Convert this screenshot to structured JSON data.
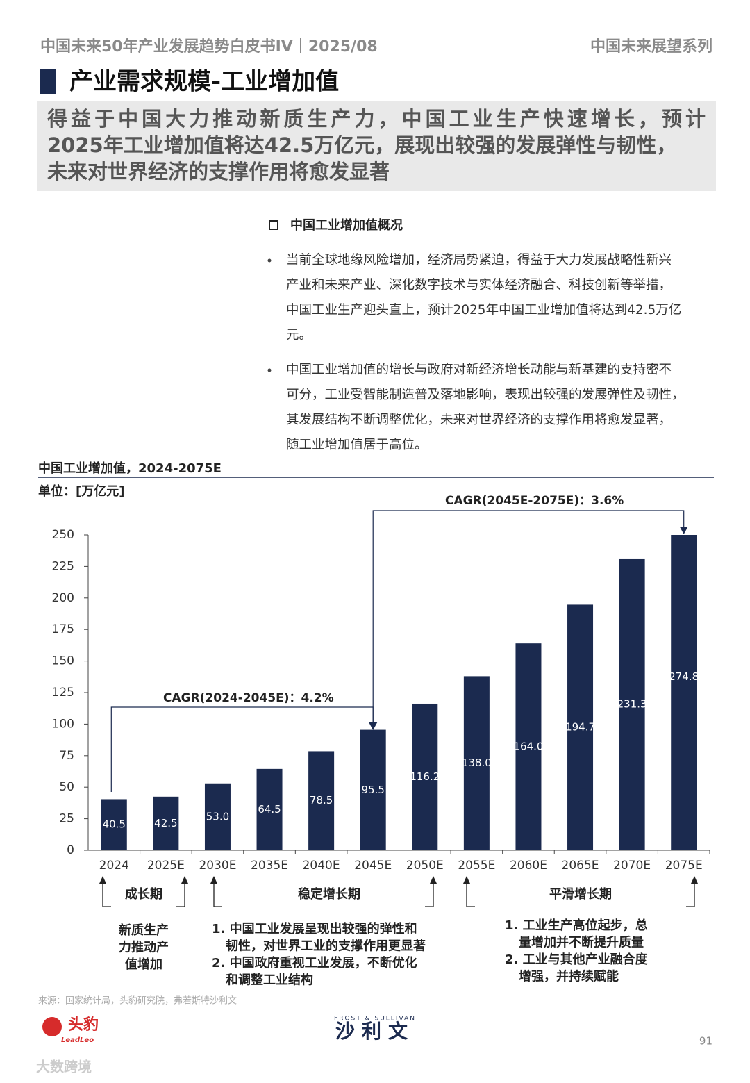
{
  "header": {
    "left": "中国未来50年产业发展趋势白皮书IV｜2025/08",
    "right": "中国未来展望系列"
  },
  "section_title": "产业需求规模-工业增加值",
  "summary": [
    "得益于中国大力推动新质生产力，中国工业生产快速增长，预计",
    "2025年工业增加值将达42.5万亿元，展现出较强的发展弹性与韧性，",
    "未来对世界经济的支撑作用将愈发显著"
  ],
  "overview": {
    "heading": "中国工业增加值概况",
    "bullets": [
      [
        "当前全球地缘风险增加，经济局势紧迫，得益于大力发展战略性新兴",
        "产业和未来产业、深化数字技术与实体经济融合、科技创新等举措，",
        "中国工业生产迎头直上，预计2025年中国工业增加值将达到42.5万亿",
        "元。"
      ],
      [
        "中国工业增加值的增长与政府对新经济增长动能与新基建的支持密不",
        "可分，工业受智能制造普及落地影响，表现出较强的发展弹性及韧性，",
        "其发展结构不断调整优化，未来对世界经济的支撑作用将愈发显著，",
        "随工业增加值居于高位。"
      ]
    ]
  },
  "chart_data": {
    "type": "bar",
    "title": "中国工业增加值，2024-2075E",
    "unit": "单位：[万亿元]",
    "categories": [
      "2024",
      "2025E",
      "2030E",
      "2035E",
      "2040E",
      "2045E",
      "2050E",
      "2055E",
      "2060E",
      "2065E",
      "2070E",
      "2075E"
    ],
    "values": [
      40.5,
      42.5,
      53.0,
      64.5,
      78.5,
      95.5,
      116.2,
      138.0,
      164.0,
      194.7,
      231.3,
      274.8
    ],
    "value_labels": [
      "40.5",
      "42.5",
      "53.0",
      "64.5",
      "78.5",
      "95.5",
      "116.2",
      "138.0",
      "164.0",
      "194.7",
      "231.3",
      "274.8"
    ],
    "color": "#1b2a4f",
    "ylim": [
      0,
      250
    ],
    "yticks": [
      0,
      25,
      50,
      75,
      100,
      125,
      150,
      175,
      200,
      225,
      250
    ],
    "annotations": [
      "CAGR(2024-2045E)：4.2%",
      "CAGR(2045E-2075E)：3.6%"
    ],
    "phases": [
      {
        "label": "成长期",
        "description": [
          "新质生产",
          "力推动产",
          "值增加"
        ]
      },
      {
        "label": "稳定增长期",
        "description": [
          "1.  中国工业发展呈现出较强的弹性和",
          "韧性，对世界工业的支撑作用更显著",
          "2.  中国政府重视工业发展，不断优化",
          "和调整工业结构"
        ]
      },
      {
        "label": "平滑增长期",
        "description": [
          "1.  工业生产高位起步，总",
          "量增加并不断提升质量",
          "2.  工业与其他产业融合度",
          "增强，并持续赋能"
        ]
      }
    ]
  },
  "source": "来源：国家统计局，头豹研究院，弗若斯特沙利文",
  "logos": {
    "leadleo_cn": "头豹",
    "leadleo_en": "LeadLeo",
    "frost": "FROST & SULLIVAN",
    "frost_cn": "沙利文"
  },
  "page_number": "91",
  "watermark": "大数跨境"
}
